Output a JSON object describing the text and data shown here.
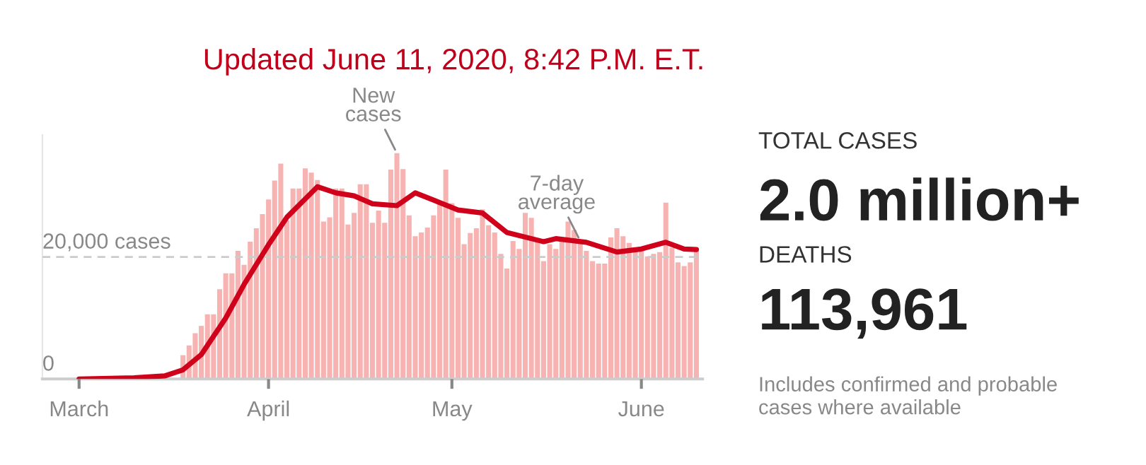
{
  "chart_data": [
    {
      "type": "bar",
      "title": "Updated June 11, 2020, 8:42 P.M. E.T.",
      "x": [
        "2020-03-18",
        "2020-03-19",
        "2020-03-20",
        "2020-03-21",
        "2020-03-22",
        "2020-03-23",
        "2020-03-24",
        "2020-03-25",
        "2020-03-26",
        "2020-03-27",
        "2020-03-28",
        "2020-03-29",
        "2020-03-30",
        "2020-03-31",
        "2020-04-01",
        "2020-04-02",
        "2020-04-03",
        "2020-04-04",
        "2020-04-05",
        "2020-04-06",
        "2020-04-07",
        "2020-04-08",
        "2020-04-09",
        "2020-04-10",
        "2020-04-11",
        "2020-04-12",
        "2020-04-13",
        "2020-04-14",
        "2020-04-15",
        "2020-04-16",
        "2020-04-17",
        "2020-04-18",
        "2020-04-19",
        "2020-04-20",
        "2020-04-21",
        "2020-04-22",
        "2020-04-23",
        "2020-04-24",
        "2020-04-25",
        "2020-04-26",
        "2020-04-27",
        "2020-04-28",
        "2020-04-29",
        "2020-04-30",
        "2020-05-01",
        "2020-05-02",
        "2020-05-03",
        "2020-05-04",
        "2020-05-05",
        "2020-05-06",
        "2020-05-07",
        "2020-05-08",
        "2020-05-09",
        "2020-05-10",
        "2020-05-11",
        "2020-05-12",
        "2020-05-13",
        "2020-05-14",
        "2020-05-15",
        "2020-05-16",
        "2020-05-17",
        "2020-05-18",
        "2020-05-19",
        "2020-05-20",
        "2020-05-21",
        "2020-05-22",
        "2020-05-23",
        "2020-05-24",
        "2020-05-25",
        "2020-05-26",
        "2020-05-27",
        "2020-05-28",
        "2020-05-29",
        "2020-05-30",
        "2020-05-31",
        "2020-06-01",
        "2020-06-02",
        "2020-06-03",
        "2020-06-04",
        "2020-06-05",
        "2020-06-06",
        "2020-06-07",
        "2020-06-08",
        "2020-06-09",
        "2020-06-10"
      ],
      "series": [
        {
          "type": "bar",
          "color": "#f6b3b1",
          "values": [
            3900,
            5500,
            7500,
            8700,
            10600,
            10600,
            14700,
            17300,
            17300,
            21000,
            18700,
            22500,
            24700,
            27000,
            29400,
            32500,
            35300,
            26000,
            31200,
            31200,
            34500,
            33800,
            32600,
            25800,
            26500,
            31200,
            31200,
            25300,
            27200,
            31900,
            31900,
            25600,
            27600,
            25600,
            34300,
            37000,
            34400,
            26800,
            23400,
            24000,
            24800,
            26800,
            29200,
            34300,
            28800,
            26400,
            22100,
            23900,
            24700,
            27800,
            25200,
            24000,
            20500,
            18100,
            22600,
            21300,
            27200,
            26400,
            23100,
            19300,
            22100,
            21300,
            23200,
            25800,
            24400,
            22500,
            21000,
            19300,
            18900,
            18900,
            23200,
            24700,
            23400,
            22300,
            21300,
            21300,
            20100,
            20500,
            20800,
            28900,
            21500,
            19100,
            18500,
            19100,
            21300
          ]
        },
        {
          "type": "line",
          "color": "#d0021b",
          "x": [
            "2020-03-01",
            "2020-03-10",
            "2020-03-15",
            "2020-03-18",
            "2020-03-21",
            "2020-03-25",
            "2020-03-28",
            "2020-04-01",
            "2020-04-04",
            "2020-04-07",
            "2020-04-09",
            "2020-04-12",
            "2020-04-15",
            "2020-04-18",
            "2020-04-22",
            "2020-04-25",
            "2020-04-28",
            "2020-05-02",
            "2020-05-06",
            "2020-05-10",
            "2020-05-16",
            "2020-05-18",
            "2020-05-23",
            "2020-05-28",
            "2020-06-01",
            "2020-06-05",
            "2020-06-08",
            "2020-06-10"
          ],
          "values": [
            0,
            200,
            500,
            1500,
            4000,
            10000,
            15500,
            22000,
            26500,
            29500,
            31500,
            30500,
            30000,
            28700,
            28400,
            30500,
            29300,
            27700,
            27200,
            24000,
            22500,
            23000,
            22400,
            20800,
            21300,
            22400,
            21300,
            21200
          ]
        }
      ],
      "xlim": [
        "2020-02-24",
        "2020-06-11"
      ],
      "xticks": [
        {
          "value": "2020-03-01",
          "label": "March"
        },
        {
          "value": "2020-04-01",
          "label": "April"
        },
        {
          "value": "2020-05-01",
          "label": "May"
        },
        {
          "value": "2020-06-01",
          "label": "June"
        }
      ],
      "yticks": [
        {
          "value": 0,
          "label": "0"
        },
        {
          "value": 20000,
          "label": "20,000 cases"
        }
      ],
      "ylim": [
        0,
        40000
      ],
      "grid": "y",
      "annotations": [
        {
          "text": "New\ncases",
          "x": "2020-04-22",
          "y": 37000
        },
        {
          "text": "7-day\naverage",
          "x": "2020-05-22",
          "y": 22600
        }
      ]
    },
    {
      "type": "other",
      "annotations": [
        "TOTAL CASES",
        "2.0 million+",
        "DEATHS",
        "113,961",
        "Includes confirmed and probable\ncases where available"
      ]
    }
  ]
}
